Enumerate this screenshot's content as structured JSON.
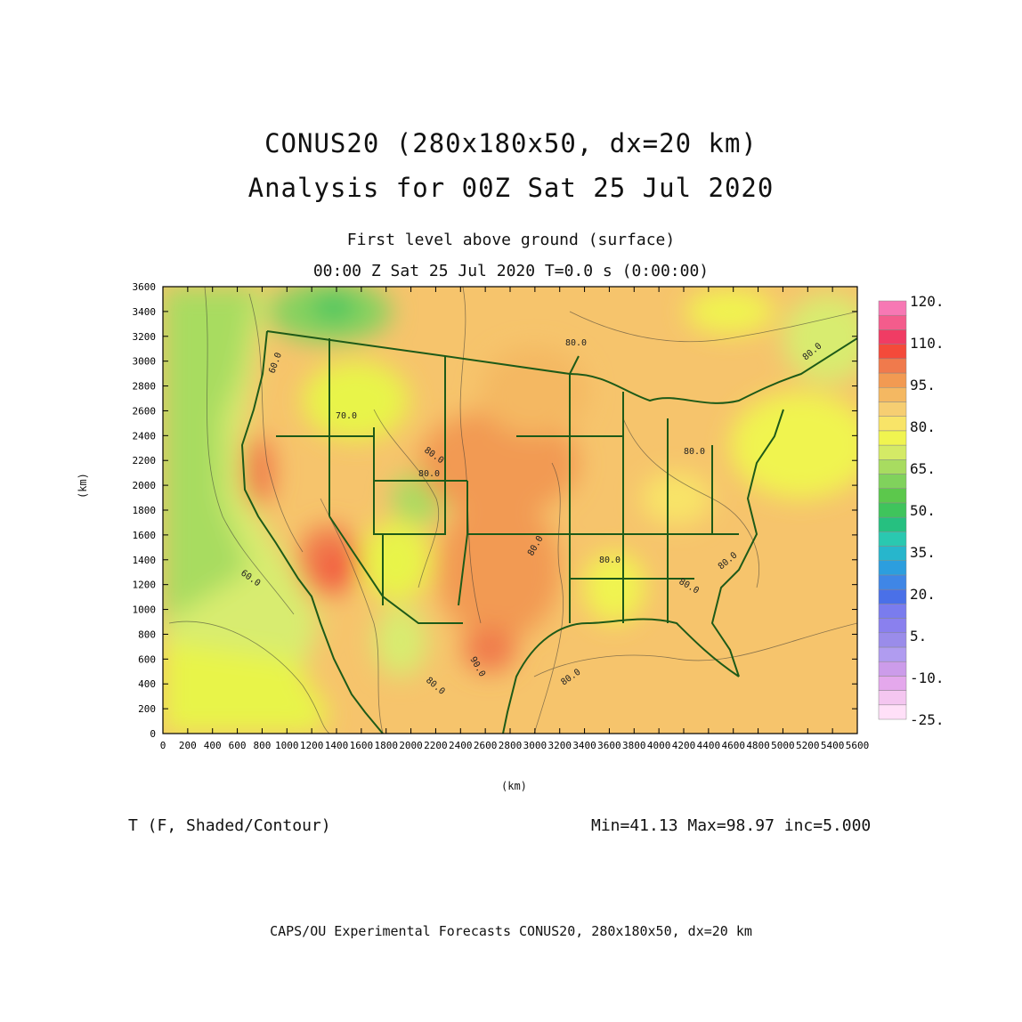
{
  "title_line1": "CONUS20 (280x180x50, dx=20 km)",
  "title_line2": "Analysis for 00Z Sat 25 Jul 2020",
  "subtitle_line1": "First level above ground (surface)",
  "subtitle_line2": "00:00 Z Sat 25 Jul 2020    T=0.0 s (0:00:00)",
  "axes": {
    "x_label": "(km)",
    "y_label": "(km)",
    "x_ticks": [
      "0",
      "200",
      "400",
      "600",
      "800",
      "1000",
      "1200",
      "1400",
      "1600",
      "1800",
      "2000",
      "2200",
      "2400",
      "2600",
      "2800",
      "3000",
      "3200",
      "3400",
      "3600",
      "3800",
      "4000",
      "4200",
      "4400",
      "4600",
      "4800",
      "5000",
      "5200",
      "5400",
      "5600"
    ],
    "y_ticks": [
      "0",
      "200",
      "400",
      "600",
      "800",
      "1000",
      "1200",
      "1400",
      "1600",
      "1800",
      "2000",
      "2200",
      "2400",
      "2600",
      "2800",
      "3000",
      "3200",
      "3400",
      "3600"
    ]
  },
  "contour_labels": [
    "80.0",
    "80.0",
    "80.0",
    "80.0",
    "80.0",
    "80.0",
    "80.0",
    "80.0",
    "80.0",
    "80.0",
    "80.0",
    "70.0",
    "60.0",
    "60.0",
    "90.0"
  ],
  "colorbar": {
    "labels": [
      "120.",
      "110.",
      "95.",
      "80.",
      "65.",
      "50.",
      "35.",
      "20.",
      "5.",
      "-10.",
      "-25."
    ],
    "colors": [
      "#ffe0f8",
      "#f4c6f0",
      "#e4a8ec",
      "#cc9cea",
      "#b09cf0",
      "#9a8cea",
      "#8a80ee",
      "#7a7cee",
      "#4a70e8",
      "#3f86e6",
      "#2c9ede",
      "#27b6cc",
      "#2ac8b0",
      "#26c080",
      "#3fc45c",
      "#5cc84c",
      "#80d25c",
      "#a8dc60",
      "#d4ea66",
      "#f0f450",
      "#f8e468",
      "#f6ce72",
      "#f4b862",
      "#f29a52",
      "#f07a4c",
      "#f44a3a",
      "#f03c64",
      "#f45c8c",
      "#f778b4"
    ]
  },
  "variable": "T (F, Shaded/Contour)",
  "minmax": "Min=41.13 Max=98.97 inc=5.000",
  "footer": "CAPS/OU Experimental Forecasts  CONUS20, 280x180x50, dx=20 km"
}
